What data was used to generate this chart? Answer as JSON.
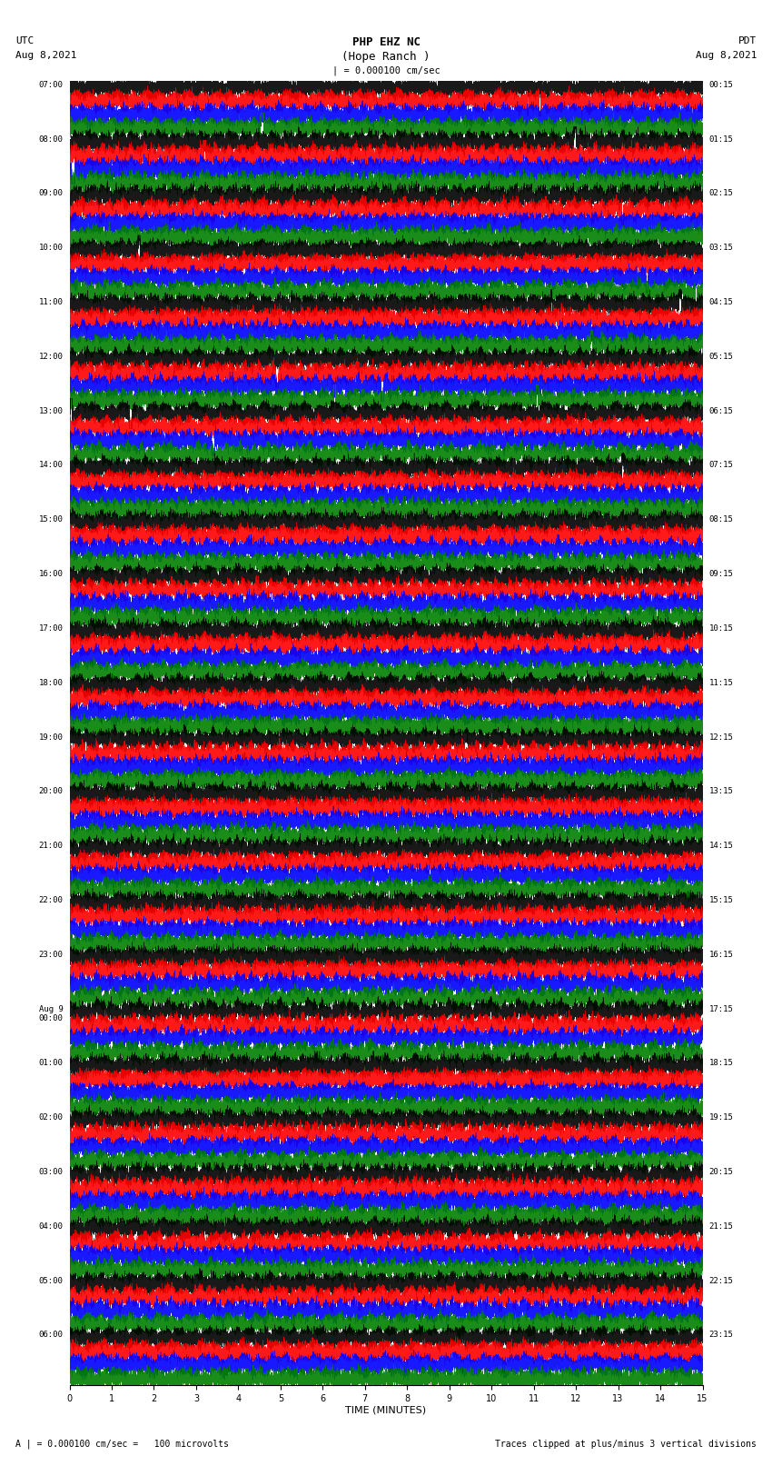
{
  "title_line1": "PHP EHZ NC",
  "title_line2": "(Hope Ranch )",
  "title_line3": "| = 0.000100 cm/sec",
  "label_left": "UTC\nAug 8,2021",
  "label_right": "PDT\nAug 8,2021",
  "xlabel": "TIME (MINUTES)",
  "footer_left": "A | = 0.000100 cm/sec =   100 microvolts",
  "footer_right": "Traces clipped at plus/minus 3 vertical divisions",
  "left_times": [
    "07:00",
    "08:00",
    "09:00",
    "10:00",
    "11:00",
    "12:00",
    "13:00",
    "14:00",
    "15:00",
    "16:00",
    "17:00",
    "18:00",
    "19:00",
    "20:00",
    "21:00",
    "22:00",
    "23:00",
    "Aug 9\n00:00",
    "01:00",
    "02:00",
    "03:00",
    "04:00",
    "05:00",
    "06:00"
  ],
  "right_times": [
    "00:15",
    "01:15",
    "02:15",
    "03:15",
    "04:15",
    "05:15",
    "06:15",
    "07:15",
    "08:15",
    "09:15",
    "10:15",
    "11:15",
    "12:15",
    "13:15",
    "14:15",
    "15:15",
    "16:15",
    "17:15",
    "18:15",
    "19:15",
    "20:15",
    "21:15",
    "22:15",
    "23:15"
  ],
  "n_rows": 24,
  "n_traces_per_row": 4,
  "minutes": 15,
  "sample_rate": 100,
  "colors": [
    "black",
    "red",
    "blue",
    "green"
  ],
  "bg_color": "white",
  "plot_bg_color": "white",
  "trace_amplitude": 0.28,
  "clip_level": 3.0,
  "xmin": 0,
  "xmax": 15,
  "xticks": [
    0,
    1,
    2,
    3,
    4,
    5,
    6,
    7,
    8,
    9,
    10,
    11,
    12,
    13,
    14,
    15
  ]
}
